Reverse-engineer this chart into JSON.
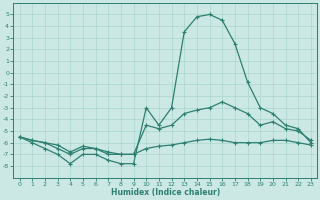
{
  "x": [
    0,
    1,
    2,
    3,
    4,
    5,
    6,
    7,
    8,
    9,
    10,
    11,
    12,
    13,
    14,
    15,
    16,
    17,
    18,
    19,
    20,
    21,
    22,
    23
  ],
  "line_peak": [
    -5.5,
    -6.0,
    -6.5,
    -7.0,
    -7.8,
    -7.0,
    -7.0,
    -7.5,
    -7.8,
    -7.8,
    -3.0,
    -4.5,
    -3.0,
    3.5,
    4.8,
    5.0,
    4.5,
    2.5,
    -0.8,
    -3.0,
    -3.5,
    -4.5,
    -4.8,
    -6.0
  ],
  "line_upper": [
    -5.5,
    -5.8,
    -6.0,
    -6.5,
    -7.0,
    -6.5,
    -6.5,
    -7.0,
    -7.0,
    -7.0,
    -4.5,
    -4.8,
    -4.5,
    -3.5,
    -3.2,
    -3.0,
    -2.5,
    -3.0,
    -3.5,
    -4.5,
    -4.2,
    -4.8,
    -5.0,
    -5.8
  ],
  "line_flat": [
    -5.5,
    -5.8,
    -6.0,
    -6.2,
    -6.8,
    -6.3,
    -6.5,
    -6.8,
    -7.0,
    -7.0,
    -6.5,
    -6.3,
    -6.2,
    -6.0,
    -5.8,
    -5.7,
    -5.8,
    -6.0,
    -6.0,
    -6.0,
    -5.8,
    -5.8,
    -6.0,
    -6.2
  ],
  "line_color": "#2d7f72",
  "bg_color": "#cce8e4",
  "grid_color": "#aad4ce",
  "xlabel": "Humidex (Indice chaleur)",
  "ylim": [
    -9,
    6
  ],
  "xlim": [
    -0.5,
    23.5
  ],
  "yticks": [
    5,
    4,
    3,
    2,
    1,
    0,
    -1,
    -2,
    -3,
    -4,
    -5,
    -6,
    -7,
    -8
  ],
  "xticks": [
    0,
    1,
    2,
    3,
    4,
    5,
    6,
    7,
    8,
    9,
    10,
    11,
    12,
    13,
    14,
    15,
    16,
    17,
    18,
    19,
    20,
    21,
    22,
    23
  ]
}
